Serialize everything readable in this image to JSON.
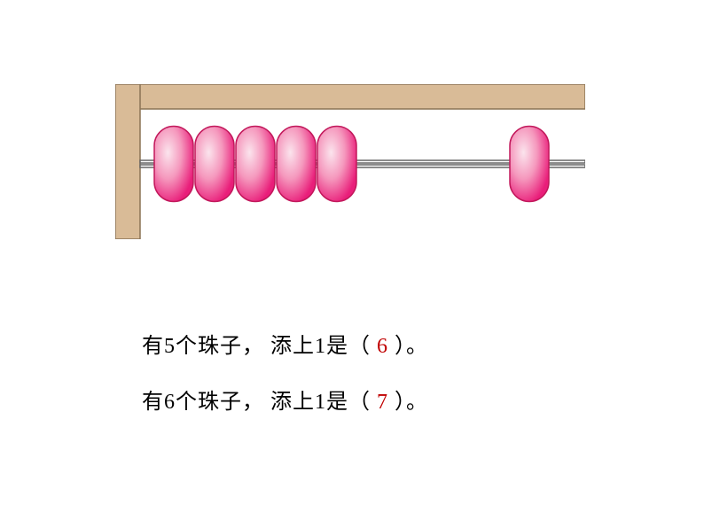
{
  "abacus": {
    "frame_color": "#d9bb97",
    "frame_stroke": "#8b7355",
    "rod_color": "#ffffff",
    "rod_stroke": "#666666",
    "bead_gradient_light": "#fbe4ed",
    "bead_gradient_mid": "#f598bd",
    "bead_gradient_dark": "#e91e7a",
    "bead_stroke": "#c2185b",
    "left_beads_count": 5,
    "right_beads_count": 1,
    "bead_width": 44,
    "bead_height": 85,
    "bead_rx": 22,
    "container_width": 530,
    "container_height": 175
  },
  "line1": {
    "prefix": "有5个珠子，",
    "middle": "添上1是（",
    "answer": "6",
    "suffix": "）。"
  },
  "line2": {
    "prefix": "有6个珠子，",
    "middle": "添上1是（",
    "answer": "7",
    "suffix": "）。"
  },
  "text_color": "#000000",
  "answer_color": "#c00000",
  "background_color": "#ffffff",
  "font_size": 24
}
